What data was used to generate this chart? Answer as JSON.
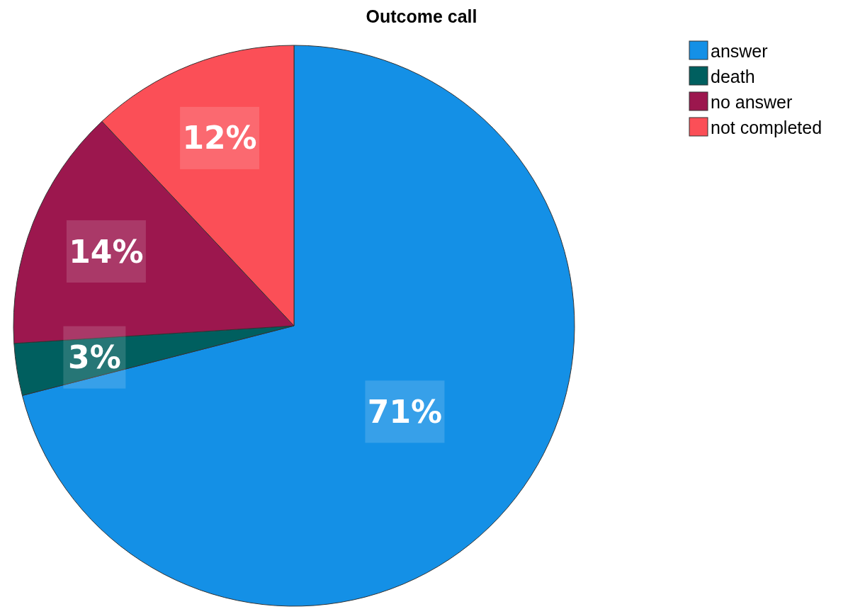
{
  "chart_data": {
    "type": "pie",
    "title": "Outcome call",
    "categories": [
      "answer",
      "death",
      "no answer",
      "not completed"
    ],
    "values": [
      71,
      3,
      14,
      12
    ],
    "colors": [
      "#1490e6",
      "#005f5f",
      "#9c174e",
      "#fb4f57"
    ],
    "value_labels": [
      "71%",
      "3%",
      "14%",
      "12%"
    ],
    "legend": "top right"
  }
}
